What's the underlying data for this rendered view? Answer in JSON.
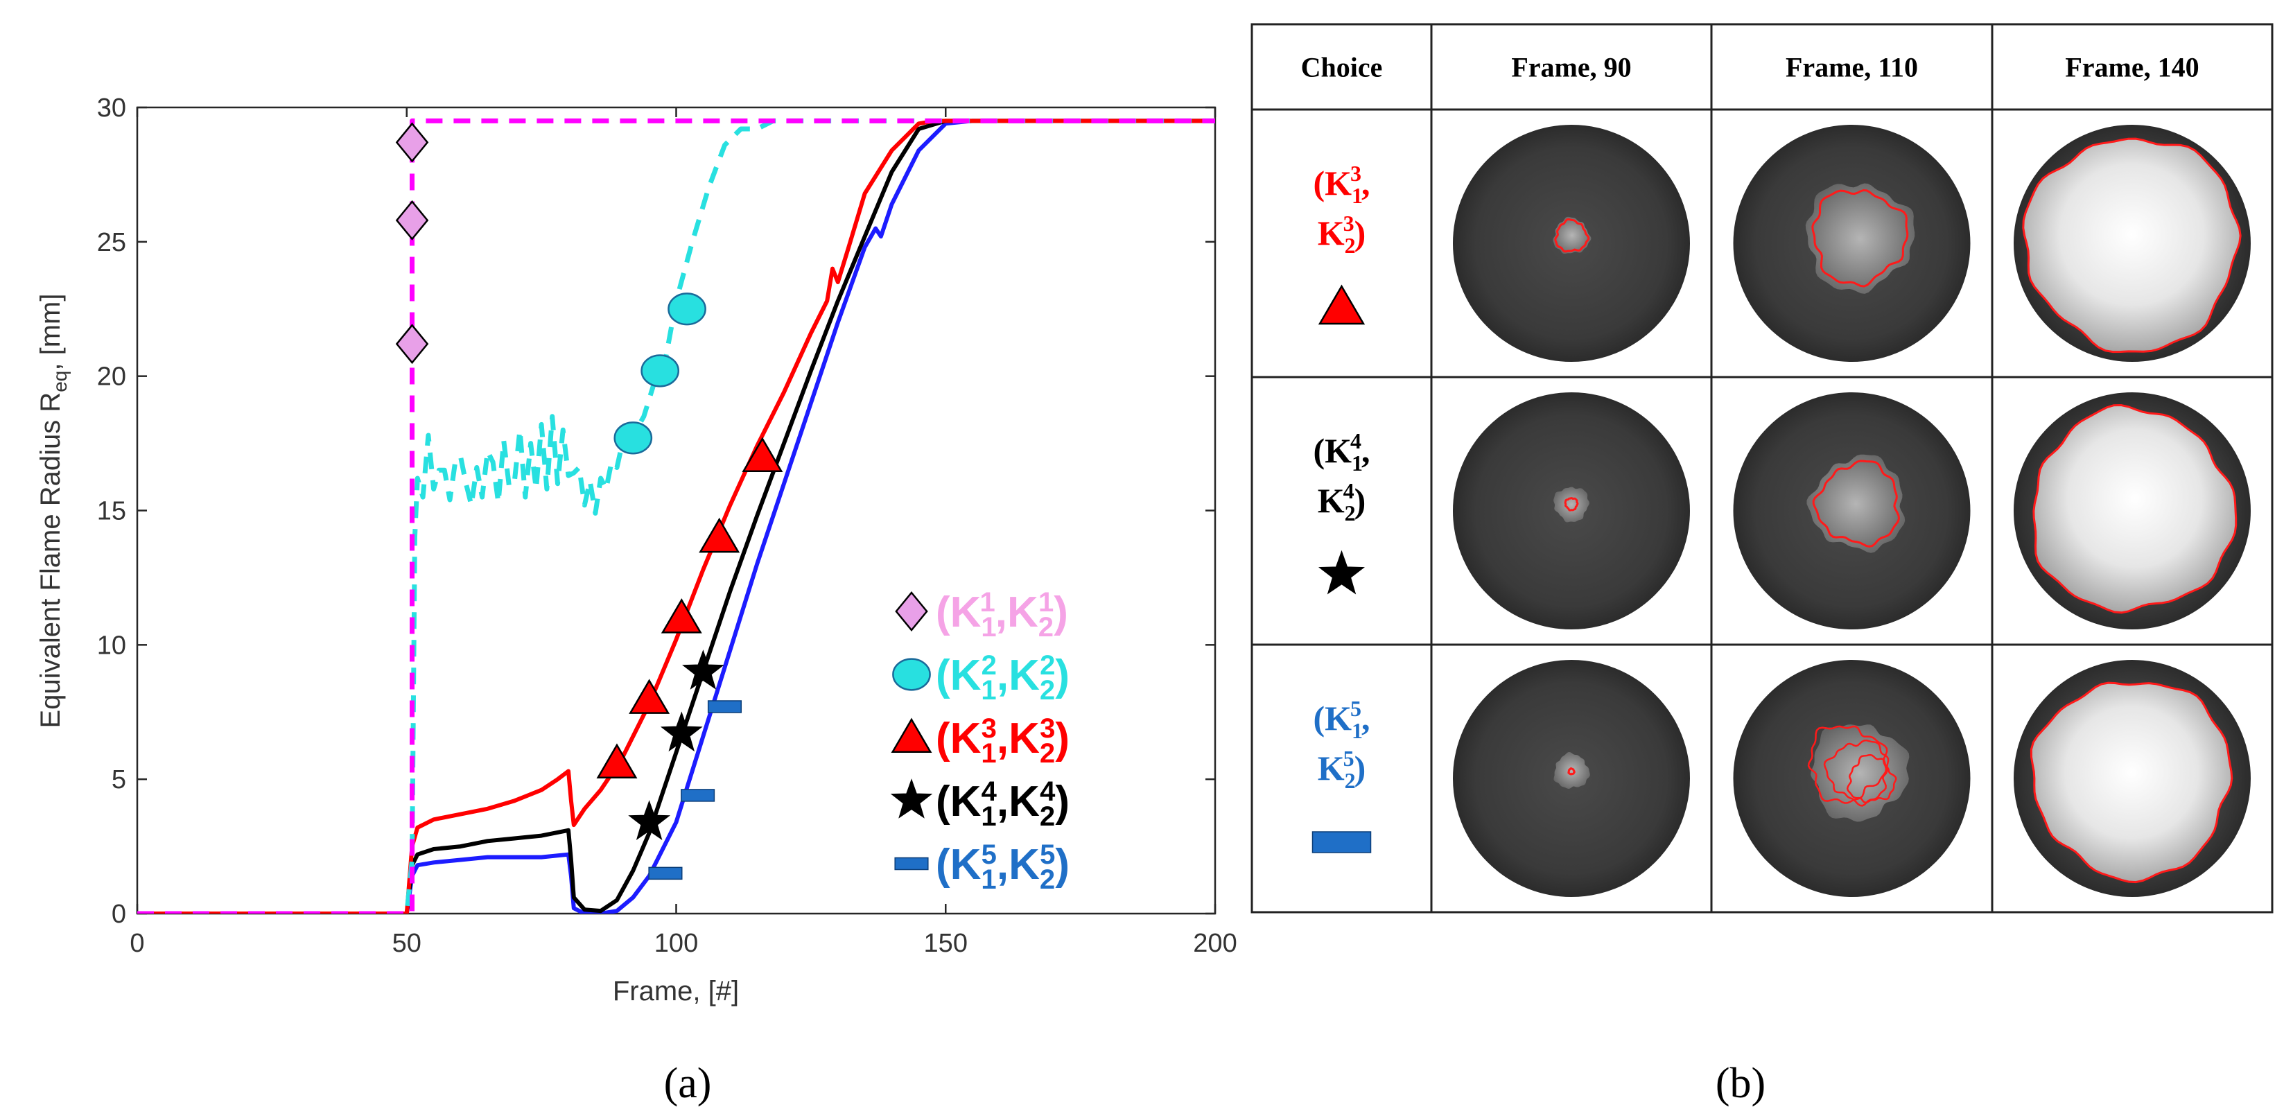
{
  "chart_data": [
    {
      "type": "line",
      "panel": "(a)",
      "xlabel": "Frame, [#]",
      "ylabel": "Equivalent Flame Radius R",
      "ylabel_sub": "eq",
      "ylabel_suffix": ", [mm]",
      "xlim": [
        0,
        200
      ],
      "ylim": [
        0,
        30
      ],
      "xticks": [
        0,
        50,
        100,
        150,
        200
      ],
      "yticks": [
        0,
        5,
        10,
        15,
        20,
        25,
        30
      ],
      "grid": false,
      "legend_position": "bottom-right",
      "series": [
        {
          "name": "(K1^1,K2^1)",
          "legend": [
            "(K",
            "1",
            "1",
            ",K",
            "2",
            "1",
            ")"
          ],
          "color": "#ff00ff",
          "legend_color": "#f5a3e6",
          "marker": "diamond",
          "marker_fill": "#e8a0e8",
          "style": "dashed",
          "x": [
            0,
            51,
            51,
            200
          ],
          "y": [
            0,
            0,
            29.5,
            29.5
          ],
          "markers": [
            [
              51,
              21.2
            ],
            [
              51,
              25.8
            ],
            [
              51,
              28.7
            ]
          ]
        },
        {
          "name": "(K1^2,K2^2)",
          "legend": [
            "(K",
            "1",
            "2",
            ",K",
            "2",
            "2",
            ")"
          ],
          "color": "#28e0e0",
          "legend_color": "#28e0e0",
          "marker": "ellipse",
          "marker_fill": "#28e0e0",
          "style": "dashed",
          "x": [
            0,
            50,
            51,
            51.5,
            52,
            53,
            54,
            55,
            56,
            57,
            58,
            59,
            60,
            61,
            62,
            63,
            64,
            65,
            66,
            67,
            68,
            69,
            70,
            71,
            72,
            73,
            74,
            75,
            76,
            77,
            78,
            79,
            80,
            81,
            82,
            83,
            84,
            85,
            86,
            87,
            88,
            89,
            90,
            92,
            94,
            96,
            98,
            100,
            103,
            106,
            109,
            112,
            115,
            118,
            122,
            130,
            150,
            200
          ],
          "y": [
            0,
            0,
            2,
            14,
            16.2,
            15.5,
            17.8,
            15.8,
            16.5,
            16.5,
            15.4,
            16.8,
            17,
            16,
            15.2,
            16.6,
            15.5,
            17.2,
            16.8,
            15.3,
            17.6,
            15.9,
            16.1,
            18,
            15.5,
            17.5,
            15.8,
            18.2,
            15.8,
            18.5,
            16,
            18,
            16.3,
            16.4,
            16.6,
            15.2,
            16.1,
            14.9,
            16.2,
            15.8,
            16.8,
            16.6,
            17.5,
            17.8,
            18.5,
            19.8,
            20.6,
            22.8,
            25,
            27,
            28.6,
            29.2,
            29.2,
            29.5,
            29.5,
            29.5,
            29.5,
            29.5
          ],
          "markers": [
            [
              92,
              17.7
            ],
            [
              97,
              20.2
            ],
            [
              102,
              22.5
            ]
          ]
        },
        {
          "name": "(K1^3,K2^3)",
          "legend": [
            "(K",
            "1",
            "3",
            ",K",
            "2",
            "3",
            ")"
          ],
          "color": "#ff0000",
          "legend_color": "#ff0000",
          "marker": "triangle",
          "marker_fill": "#ff0000",
          "style": "solid",
          "x": [
            0,
            50,
            51,
            52,
            55,
            60,
            65,
            70,
            75,
            78,
            80,
            80.5,
            81,
            83,
            86,
            90,
            95,
            100,
            105,
            110,
            115,
            120,
            125,
            128,
            129,
            130,
            132,
            135,
            140,
            145,
            148,
            200
          ],
          "y": [
            0,
            0,
            2.5,
            3.2,
            3.5,
            3.7,
            3.9,
            4.2,
            4.6,
            5.0,
            5.3,
            4.2,
            3.3,
            3.9,
            4.6,
            5.8,
            7.8,
            10.2,
            12.8,
            15.2,
            17.4,
            19.4,
            21.6,
            22.8,
            24,
            23.5,
            24.8,
            26.8,
            28.4,
            29.4,
            29.5,
            29.5
          ],
          "markers": [
            [
              89,
              5.6
            ],
            [
              95,
              8.0
            ],
            [
              101,
              11.0
            ],
            [
              108,
              14.0
            ],
            [
              116,
              17.0
            ]
          ]
        },
        {
          "name": "(K1^4,K2^4)",
          "legend": [
            "(K",
            "1",
            "4",
            ",K",
            "2",
            "4",
            ")"
          ],
          "color": "#000000",
          "legend_color": "#000000",
          "marker": "star",
          "marker_fill": "#000000",
          "style": "solid",
          "x": [
            0,
            50,
            51,
            52,
            55,
            60,
            65,
            70,
            75,
            80,
            80.5,
            81,
            83,
            86,
            89,
            92,
            95,
            100,
            105,
            110,
            115,
            120,
            125,
            130,
            135,
            140,
            145,
            150,
            200
          ],
          "y": [
            0,
            0,
            1.8,
            2.2,
            2.4,
            2.5,
            2.7,
            2.8,
            2.9,
            3.1,
            2.0,
            0.6,
            0.15,
            0.1,
            0.5,
            1.6,
            3.0,
            6.0,
            9.0,
            12.0,
            14.8,
            17.5,
            20.2,
            22.8,
            25.2,
            27.6,
            29.2,
            29.5,
            29.5
          ],
          "markers": [
            [
              95,
              3.4
            ],
            [
              101,
              6.7
            ],
            [
              105,
              9.0
            ]
          ]
        },
        {
          "name": "(K1^5,K2^5)",
          "legend": [
            "(K",
            "1",
            "5",
            ",K",
            "2",
            "5",
            ")"
          ],
          "color": "#1c1cff",
          "legend_color": "#1f6fc7",
          "marker": "bar",
          "marker_fill": "#1f6fc7",
          "style": "solid",
          "x": [
            0,
            50,
            51,
            52,
            55,
            60,
            65,
            70,
            75,
            80,
            80.5,
            81,
            83,
            86,
            89,
            92,
            95,
            100,
            105,
            110,
            115,
            120,
            125,
            130,
            135,
            137,
            138,
            140,
            145,
            150,
            155,
            200
          ],
          "y": [
            0,
            0,
            1.4,
            1.8,
            1.9,
            2.0,
            2.1,
            2.1,
            2.1,
            2.2,
            1.4,
            0.2,
            0.0,
            0.0,
            0.1,
            0.6,
            1.4,
            3.4,
            6.6,
            9.8,
            13.0,
            16.0,
            19.0,
            22.0,
            24.8,
            25.5,
            25.2,
            26.4,
            28.4,
            29.4,
            29.5,
            29.5
          ],
          "markers": [
            [
              98,
              1.5
            ],
            [
              104,
              4.4
            ],
            [
              109,
              7.7
            ]
          ]
        }
      ]
    },
    {
      "type": "table",
      "panel": "(b)",
      "columns": [
        "Choice",
        "Frame, 90",
        "Frame, 110",
        "Frame, 140"
      ],
      "rows": [
        {
          "choice": [
            "(K",
            "1",
            "3",
            ",",
            "K",
            "2",
            "3",
            ")"
          ],
          "color": "#ff0000",
          "marker": "triangle",
          "outline_sizes": [
            0.13,
            0.39,
            0.97
          ],
          "outline_detail": "clear"
        },
        {
          "choice": [
            "(K",
            "1",
            "4",
            ",",
            "K",
            "2",
            "4",
            ")"
          ],
          "color": "#000000",
          "marker": "star",
          "outline_sizes": [
            0.05,
            0.34,
            0.92
          ],
          "outline_detail": "clear"
        },
        {
          "choice": [
            "(K",
            "1",
            "5",
            ",",
            "K",
            "2",
            "5",
            ")"
          ],
          "color": "#1f6fc7",
          "marker": "bar",
          "outline_sizes": [
            0.02,
            0.35,
            0.9
          ],
          "outline_detail": "noisy"
        }
      ]
    }
  ],
  "labels": {
    "panel_a": "(a)",
    "panel_b": "(b)"
  }
}
